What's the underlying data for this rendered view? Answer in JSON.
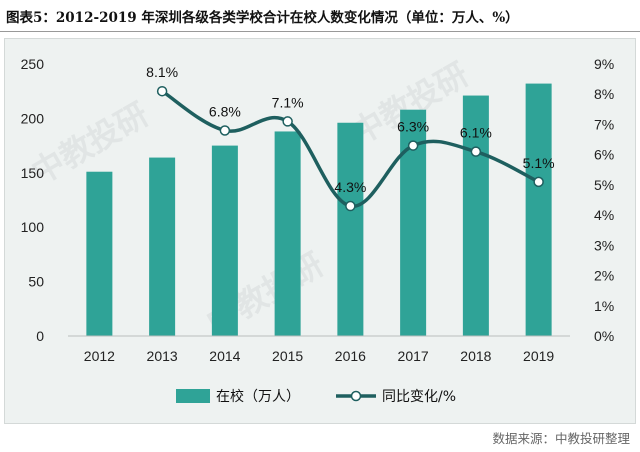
{
  "title": "图表5：2012-2019 年深圳各级各类学校合计在校人数变化情况（单位：万人、%）",
  "source": "数据来源：中教投研整理",
  "watermark": "中教投研",
  "colors": {
    "bar": "#2fa397",
    "line": "#1e5f5f",
    "marker_fill": "#ffffff"
  },
  "chart_data": {
    "type": "bar",
    "categories": [
      "2012",
      "2013",
      "2014",
      "2015",
      "2016",
      "2017",
      "2018",
      "2019"
    ],
    "series": [
      {
        "name": "在校（万人）",
        "type": "bar",
        "axis": "left",
        "values": [
          151,
          164,
          175,
          188,
          196,
          208,
          221,
          232
        ]
      },
      {
        "name": "同比变化/%",
        "type": "line",
        "axis": "right",
        "values": [
          null,
          8.1,
          6.8,
          7.1,
          4.3,
          6.3,
          6.1,
          5.1
        ]
      }
    ],
    "y_left": {
      "ylim": [
        0,
        250
      ],
      "ticks": [
        "0",
        "50",
        "100",
        "150",
        "200",
        "250"
      ]
    },
    "y_right": {
      "ylim": [
        0,
        9
      ],
      "ticks": [
        "0%",
        "1%",
        "2%",
        "3%",
        "4%",
        "5%",
        "6%",
        "7%",
        "8%",
        "9%"
      ]
    },
    "data_labels": [
      "",
      "8.1%",
      "6.8%",
      "7.1%",
      "4.3%",
      "6.3%",
      "6.1%",
      "5.1%"
    ],
    "grid": false,
    "legend_position": "bottom"
  }
}
